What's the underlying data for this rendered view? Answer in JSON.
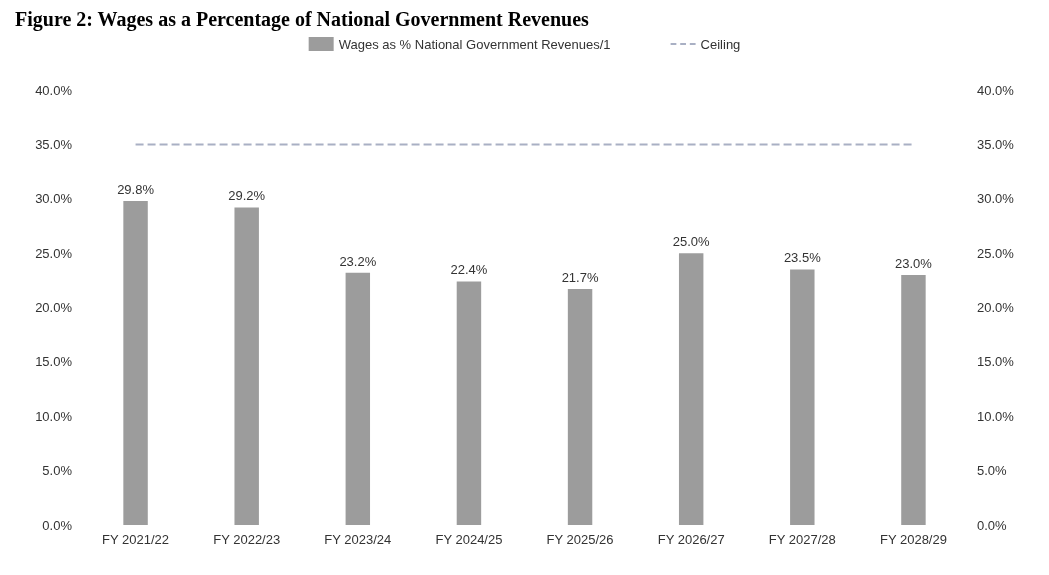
{
  "chart_data": {
    "type": "bar",
    "title": "Figure 2: Wages as a Percentage of National Government Revenues",
    "categories": [
      "FY 2021/22",
      "FY 2022/23",
      "FY 2023/24",
      "FY 2024/25",
      "FY 2025/26",
      "FY 2026/27",
      "FY 2027/28",
      "FY 2028/29"
    ],
    "series": [
      {
        "name": "Wages as % National Government Revenues/1",
        "color": "#9c9c9c",
        "values": [
          29.8,
          29.2,
          23.2,
          22.4,
          21.7,
          25.0,
          23.5,
          23.0
        ],
        "value_labels": [
          "29.8%",
          "29.2%",
          "23.2%",
          "22.4%",
          "21.7%",
          "25.0%",
          "23.5%",
          "23.0%"
        ]
      },
      {
        "name": "Ceiling",
        "type": "line",
        "color": "#a9b0c4",
        "line_style": "dashed",
        "marker": "none",
        "values": [
          35,
          35,
          35,
          35,
          35,
          35,
          35,
          35
        ]
      }
    ],
    "ylim": [
      0,
      40
    ],
    "yticks": [
      {
        "value": 0,
        "label": "0.0%"
      },
      {
        "value": 5,
        "label": "5.0%"
      },
      {
        "value": 10,
        "label": "10.0%"
      },
      {
        "value": 15,
        "label": "15.0%"
      },
      {
        "value": 20,
        "label": "20.0%"
      },
      {
        "value": 25,
        "label": "25.0%"
      },
      {
        "value": 30,
        "label": "30.0%"
      },
      {
        "value": 35,
        "label": "35.0%"
      },
      {
        "value": 40,
        "label": "40.0%"
      }
    ],
    "y2lim": [
      0,
      40
    ],
    "y2ticks": [
      {
        "value": 0,
        "label": "0.0%"
      },
      {
        "value": 5,
        "label": "5.0%"
      },
      {
        "value": 10,
        "label": "10.0%"
      },
      {
        "value": 15,
        "label": "15.0%"
      },
      {
        "value": 20,
        "label": "20.0%"
      },
      {
        "value": 25,
        "label": "25.0%"
      },
      {
        "value": 30,
        "label": "30.0%"
      },
      {
        "value": 35,
        "label": "35.0%"
      },
      {
        "value": 40,
        "label": "40.0%"
      }
    ],
    "legend": "top",
    "grid": false
  }
}
